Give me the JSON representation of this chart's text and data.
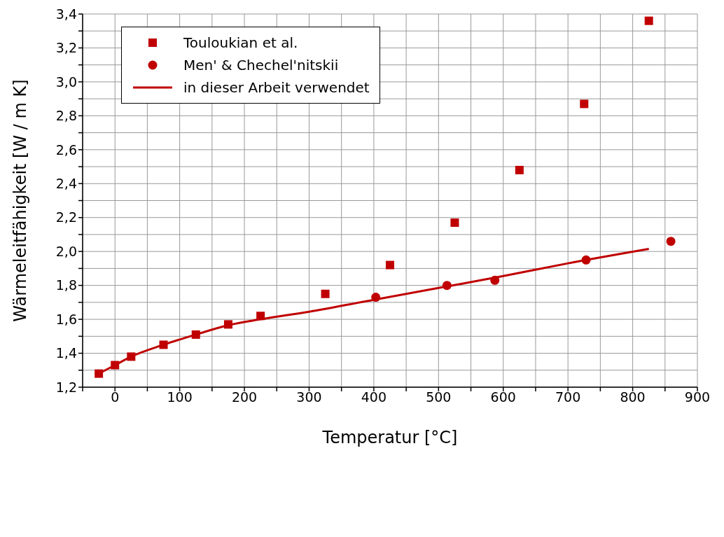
{
  "chart_data": {
    "type": "scatter",
    "xlabel": "Temperatur [°C]",
    "ylabel": "Wärmeleitfähigkeit [W / m K]",
    "xlim": [
      -50,
      900
    ],
    "ylim": [
      1.2,
      3.4
    ],
    "xticks": [
      {
        "value": -50,
        "label": null
      },
      0,
      {
        "value": 50,
        "label": null
      },
      100,
      {
        "value": 150,
        "label": null
      },
      200,
      {
        "value": 250,
        "label": null
      },
      300,
      {
        "value": 350,
        "label": null
      },
      400,
      {
        "value": 450,
        "label": null
      },
      500,
      {
        "value": 550,
        "label": null
      },
      600,
      {
        "value": 650,
        "label": null
      },
      700,
      {
        "value": 750,
        "label": null
      },
      800,
      {
        "value": 850,
        "label": null
      },
      900
    ],
    "yticks": [
      {
        "value": 1.2,
        "label": "1,2"
      },
      {
        "value": 1.3,
        "label": null
      },
      {
        "value": 1.4,
        "label": "1,4"
      },
      {
        "value": 1.5,
        "label": null
      },
      {
        "value": 1.6,
        "label": "1,6"
      },
      {
        "value": 1.7,
        "label": null
      },
      {
        "value": 1.8,
        "label": "1,8"
      },
      {
        "value": 1.9,
        "label": null
      },
      {
        "value": 2.0,
        "label": "2,0"
      },
      {
        "value": 2.1,
        "label": null
      },
      {
        "value": 2.2,
        "label": "2,2"
      },
      {
        "value": 2.3,
        "label": null
      },
      {
        "value": 2.4,
        "label": "2,4"
      },
      {
        "value": 2.5,
        "label": null
      },
      {
        "value": 2.6,
        "label": "2,6"
      },
      {
        "value": 2.7,
        "label": null
      },
      {
        "value": 2.8,
        "label": "2,8"
      },
      {
        "value": 2.9,
        "label": null
      },
      {
        "value": 3.0,
        "label": "3,0"
      },
      {
        "value": 3.1,
        "label": null
      },
      {
        "value": 3.2,
        "label": "3,2"
      },
      {
        "value": 3.3,
        "label": null
      },
      {
        "value": 3.4,
        "label": "3,4"
      }
    ],
    "grid": true,
    "legend": "top left",
    "series": [
      {
        "name": "Touloukian et al.",
        "color": "#c00000",
        "marker": "square",
        "x": [
          -25,
          0,
          25,
          75,
          125,
          175,
          225,
          325,
          425,
          525,
          625,
          725,
          825
        ],
        "values": [
          1.28,
          1.33,
          1.38,
          1.45,
          1.51,
          1.57,
          1.62,
          1.75,
          1.92,
          2.17,
          2.48,
          2.87,
          3.36
        ]
      },
      {
        "name": "Men' & Chechel'nitskii",
        "color": "#c00000",
        "marker": "circle",
        "x": [
          403,
          513,
          587,
          728,
          859
        ],
        "values": [
          1.73,
          1.8,
          1.83,
          1.95,
          2.06
        ]
      },
      {
        "name": "in dieser Arbeit verwendet",
        "type": "line",
        "color": "#c00000",
        "marker": "none",
        "x": [
          -25,
          0,
          25,
          75,
          125,
          175,
          225,
          300,
          400,
          500,
          600,
          700,
          825
        ],
        "values": [
          1.28,
          1.33,
          1.38,
          1.45,
          1.51,
          1.565,
          1.6,
          1.645,
          1.715,
          1.785,
          1.855,
          1.93,
          2.015
        ]
      }
    ]
  }
}
